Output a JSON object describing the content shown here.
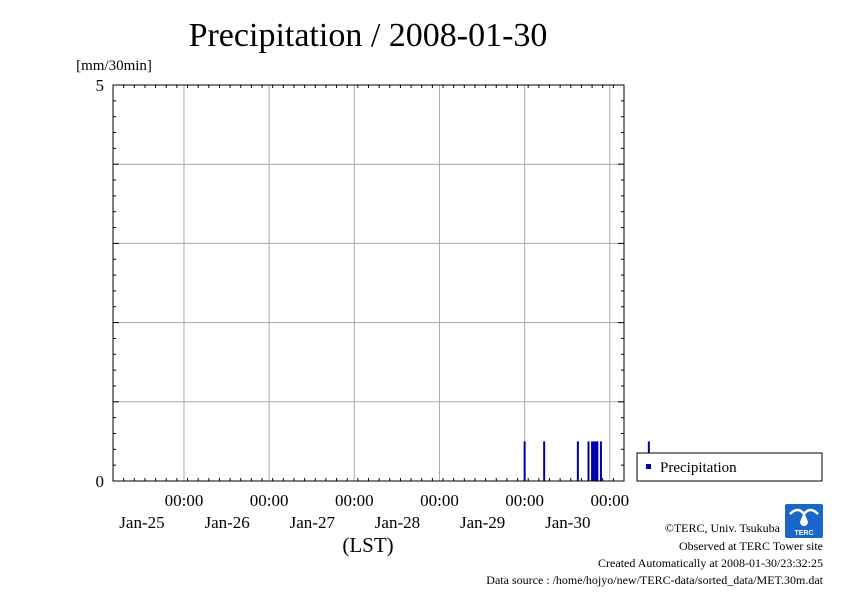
{
  "chart_data": {
    "type": "bar",
    "title": "Precipitation / 2008-01-30",
    "ylabel": "[mm/30min]",
    "xlabel": "(LST)",
    "ylim": [
      0,
      5
    ],
    "yticks": [
      0,
      5
    ],
    "grid": true,
    "legend_position": "bottom-right",
    "x_range": [
      "2008-01-24T04:00",
      "2008-01-30T04:00"
    ],
    "x_ticks": [
      {
        "time": "2008-01-25T00:00",
        "hour_label": "00:00",
        "date_label": "Jan-25"
      },
      {
        "time": "2008-01-26T00:00",
        "hour_label": "00:00",
        "date_label": "Jan-26"
      },
      {
        "time": "2008-01-27T00:00",
        "hour_label": "00:00",
        "date_label": "Jan-27"
      },
      {
        "time": "2008-01-28T00:00",
        "hour_label": "00:00",
        "date_label": "Jan-28"
      },
      {
        "time": "2008-01-29T00:00",
        "hour_label": "00:00",
        "date_label": "Jan-29"
      },
      {
        "time": "2008-01-30T00:00",
        "hour_label": "00:00",
        "date_label": "Jan-30"
      }
    ],
    "series": [
      {
        "name": "Precipitation",
        "color": "#0000aa",
        "times": [
          "2008-01-29T00:00",
          "2008-01-29T05:30",
          "2008-01-29T15:00",
          "2008-01-29T18:00",
          "2008-01-29T19:00",
          "2008-01-29T19:30",
          "2008-01-29T20:00",
          "2008-01-29T20:30",
          "2008-01-29T21:30",
          "2008-01-30T11:00"
        ],
        "values": [
          0.5,
          0.5,
          0.5,
          0.5,
          0.5,
          0.5,
          0.5,
          0.5,
          0.5,
          0.5
        ]
      }
    ]
  },
  "credits": {
    "copyright": "©TERC, Univ. Tsukuba",
    "observed": "Observed at TERC Tower site",
    "created": "Created Automatically at 2008-01-30/23:32:25",
    "source": "Data source : /home/hojyo/new/TERC-data/sorted_data/MET.30m.dat",
    "logo_text": "TERC",
    "logo_color": "#1a66c9"
  }
}
